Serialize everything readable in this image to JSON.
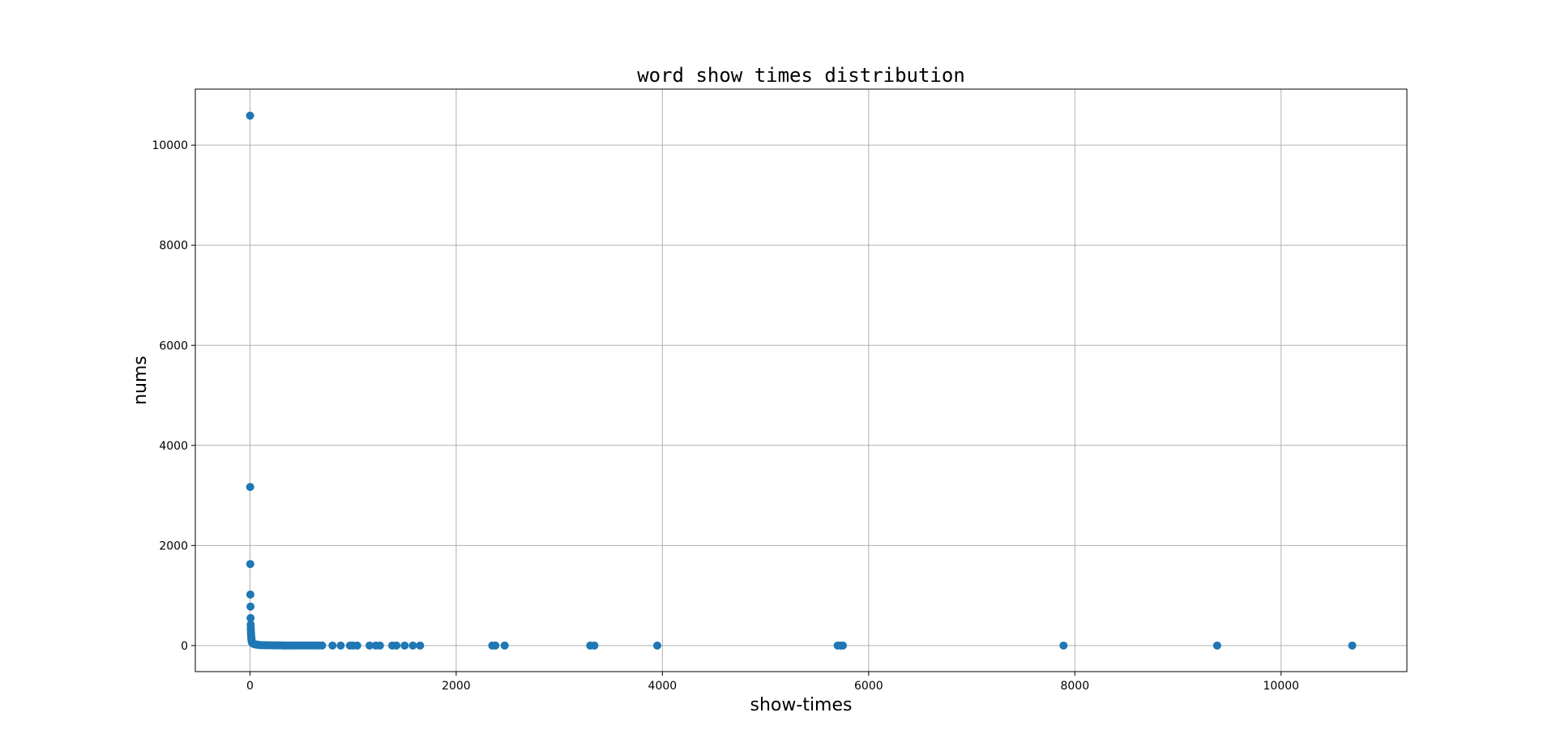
{
  "chart_data": {
    "type": "scatter",
    "title": "word show times distribution",
    "xlabel": "show-times",
    "ylabel": "nums",
    "xlim": [
      -530,
      11220
    ],
    "ylim": [
      -520,
      11120
    ],
    "xticks": [
      0,
      2000,
      4000,
      6000,
      8000,
      10000
    ],
    "yticks": [
      0,
      2000,
      4000,
      6000,
      8000,
      10000
    ],
    "grid": true,
    "legend": "none",
    "marker_color": "#1f77b4",
    "series": [
      {
        "x": [
          1,
          2,
          3,
          4,
          5,
          6,
          7,
          8,
          9,
          10,
          11,
          12,
          13,
          14,
          15,
          16,
          17,
          18,
          19,
          20,
          25,
          30,
          35,
          40,
          50,
          60,
          70,
          80,
          90,
          100,
          120,
          140,
          160,
          180,
          200,
          220,
          240,
          260,
          280,
          300,
          320,
          340,
          360,
          380,
          400,
          430,
          460,
          490,
          520,
          550,
          580,
          610,
          640,
          670,
          700,
          800,
          880,
          970,
          1000,
          1040,
          1160,
          1220,
          1260,
          1380,
          1420,
          1500,
          1580,
          1650,
          2350,
          2380,
          2470,
          3300,
          3340,
          3950,
          5700,
          5730,
          5750,
          7890,
          9380,
          10690
        ],
        "y": [
          10590,
          3170,
          1630,
          1020,
          780,
          550,
          420,
          350,
          300,
          260,
          220,
          190,
          160,
          140,
          120,
          100,
          90,
          80,
          70,
          60,
          50,
          40,
          35,
          30,
          25,
          20,
          18,
          15,
          12,
          10,
          9,
          8,
          7,
          6,
          6,
          5,
          5,
          4,
          4,
          4,
          3,
          3,
          3,
          3,
          2,
          2,
          2,
          2,
          2,
          2,
          2,
          2,
          2,
          2,
          2,
          1,
          1,
          1,
          1,
          1,
          1,
          1,
          1,
          1,
          1,
          1,
          1,
          1,
          1,
          1,
          1,
          1,
          1,
          1,
          1,
          1,
          1,
          1,
          1,
          1
        ]
      }
    ]
  }
}
